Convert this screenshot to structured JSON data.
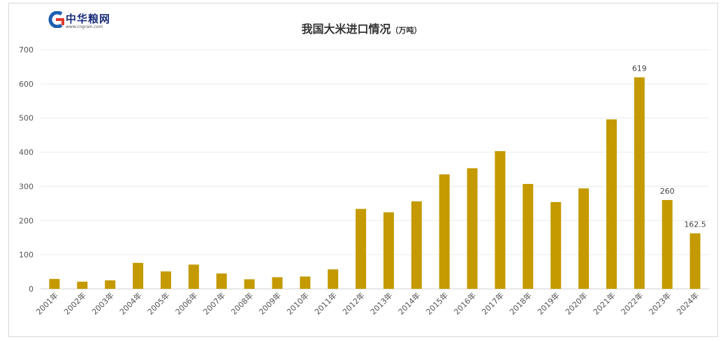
{
  "logo": {
    "name": "中华粮网",
    "url": "www.cngrain.com"
  },
  "chart_data": {
    "type": "bar",
    "title": "我国大米进口情况",
    "unit": "（万吨）",
    "xlabel": "",
    "ylabel": "",
    "ylim": [
      0,
      700
    ],
    "yticks": [
      0,
      100,
      200,
      300,
      400,
      500,
      600,
      700
    ],
    "grid": true,
    "bar_color": "#C49A00",
    "categories": [
      "2001年",
      "2002年",
      "2003年",
      "2004年",
      "2005年",
      "2006年",
      "2007年",
      "2008年",
      "2009年",
      "2010年",
      "2011年",
      "2012年",
      "2013年",
      "2014年",
      "2015年",
      "2016年",
      "2017年",
      "2018年",
      "2019年",
      "2020年",
      "2021年",
      "2022年",
      "2023年",
      "2024年"
    ],
    "values": [
      29,
      21,
      25,
      76,
      51,
      71,
      45,
      28,
      34,
      36,
      57,
      234,
      224,
      256,
      335,
      353,
      403,
      307,
      254,
      294,
      496,
      619,
      260,
      162.5
    ],
    "data_labels": {
      "21": "619",
      "22": "260",
      "23": "162.5"
    }
  }
}
